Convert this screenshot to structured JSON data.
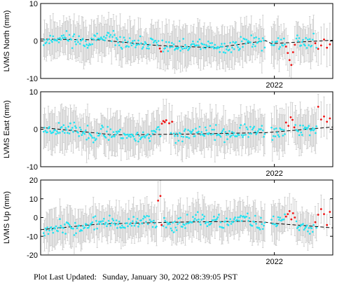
{
  "footer": {
    "label": "Plot Last Updated:",
    "datetime": "Sunday, January 30, 2022 08:39:05 PST"
  },
  "colors": {
    "regular": "#22e4f2",
    "outlier": "#ee1111",
    "errorbar": "#cccccc",
    "trend": "#000000"
  },
  "chart_data": [
    {
      "type": "scatter",
      "ylabel": "LVMS North (mm)",
      "ylim": [
        -10,
        10
      ],
      "yticks": [
        -10,
        0,
        10
      ],
      "x_year_label": "2022",
      "x_year_fraction": 0.8,
      "grid": false,
      "gap_fraction": [
        0.77,
        0.79
      ],
      "trend_points": [
        [
          0.0,
          0.5
        ],
        [
          0.2,
          0.3
        ],
        [
          0.4,
          -1.2
        ],
        [
          0.6,
          -1.8
        ],
        [
          0.77,
          0.1
        ],
        [
          0.79,
          -0.7
        ],
        [
          1.0,
          0.2
        ]
      ],
      "error_bar_mm": 4.5,
      "outliers": [
        [
          0.408,
          -2.0
        ],
        [
          0.412,
          -2.8
        ],
        [
          0.84,
          -1.5
        ],
        [
          0.846,
          -3.2
        ],
        [
          0.852,
          -5.1
        ],
        [
          0.858,
          -6.4
        ],
        [
          0.864,
          -3.0
        ],
        [
          0.87,
          -1.0
        ],
        [
          0.94,
          -0.6
        ],
        [
          0.95,
          -2.1
        ],
        [
          0.96,
          -1.2
        ],
        [
          0.97,
          0.4
        ],
        [
          0.98,
          -1.8
        ],
        [
          0.99,
          -0.9
        ]
      ],
      "seed": 11
    },
    {
      "type": "scatter",
      "ylabel": "LVMS East (mm)",
      "ylim": [
        -10,
        10
      ],
      "yticks": [
        -10,
        0,
        10
      ],
      "x_year_label": "2022",
      "x_year_fraction": 0.8,
      "grid": false,
      "gap_fraction": [
        0.77,
        0.79
      ],
      "trend_points": [
        [
          0.0,
          0.5
        ],
        [
          0.25,
          -1.5
        ],
        [
          0.5,
          -1.3
        ],
        [
          0.77,
          -0.9
        ],
        [
          0.79,
          -0.8
        ],
        [
          1.0,
          0.6
        ]
      ],
      "error_bar_mm": 4.5,
      "outliers": [
        [
          0.415,
          1.5
        ],
        [
          0.42,
          2.2
        ],
        [
          0.425,
          1.9
        ],
        [
          0.43,
          2.4
        ],
        [
          0.44,
          1.6
        ],
        [
          0.45,
          2.0
        ],
        [
          0.84,
          1.8
        ],
        [
          0.848,
          0.9
        ],
        [
          0.856,
          3.2
        ],
        [
          0.862,
          2.5
        ],
        [
          0.868,
          0.5
        ],
        [
          0.95,
          6.0
        ],
        [
          0.96,
          2.6
        ],
        [
          0.97,
          3.4
        ],
        [
          0.98,
          2.0
        ],
        [
          0.99,
          2.9
        ]
      ],
      "seed": 23
    },
    {
      "type": "scatter",
      "ylabel": "LVMS Up (mm)",
      "ylim": [
        -20,
        20
      ],
      "yticks": [
        -20,
        -10,
        0,
        10,
        20
      ],
      "x_year_label": "2022",
      "x_year_fraction": 0.8,
      "grid": false,
      "gap_fraction": [
        0.77,
        0.79
      ],
      "trend_points": [
        [
          0.0,
          -6.5
        ],
        [
          0.2,
          -3.5
        ],
        [
          0.45,
          -2.5
        ],
        [
          0.7,
          -2.0
        ],
        [
          0.77,
          -2.5
        ],
        [
          0.79,
          -3.0
        ],
        [
          1.0,
          -5.5
        ]
      ],
      "error_bar_mm": 8,
      "outliers": [
        [
          0.402,
          9.0
        ],
        [
          0.41,
          11.5
        ],
        [
          0.414,
          -4.0
        ],
        [
          0.84,
          0.5
        ],
        [
          0.846,
          1.8
        ],
        [
          0.852,
          3.4
        ],
        [
          0.858,
          -1.0
        ],
        [
          0.864,
          2.3
        ],
        [
          0.87,
          0.0
        ],
        [
          0.94,
          -2.5
        ],
        [
          0.95,
          1.5
        ],
        [
          0.96,
          4.5
        ],
        [
          0.97,
          1.8
        ],
        [
          0.98,
          -4.0
        ],
        [
          0.99,
          3.0
        ]
      ],
      "seed": 37
    }
  ]
}
